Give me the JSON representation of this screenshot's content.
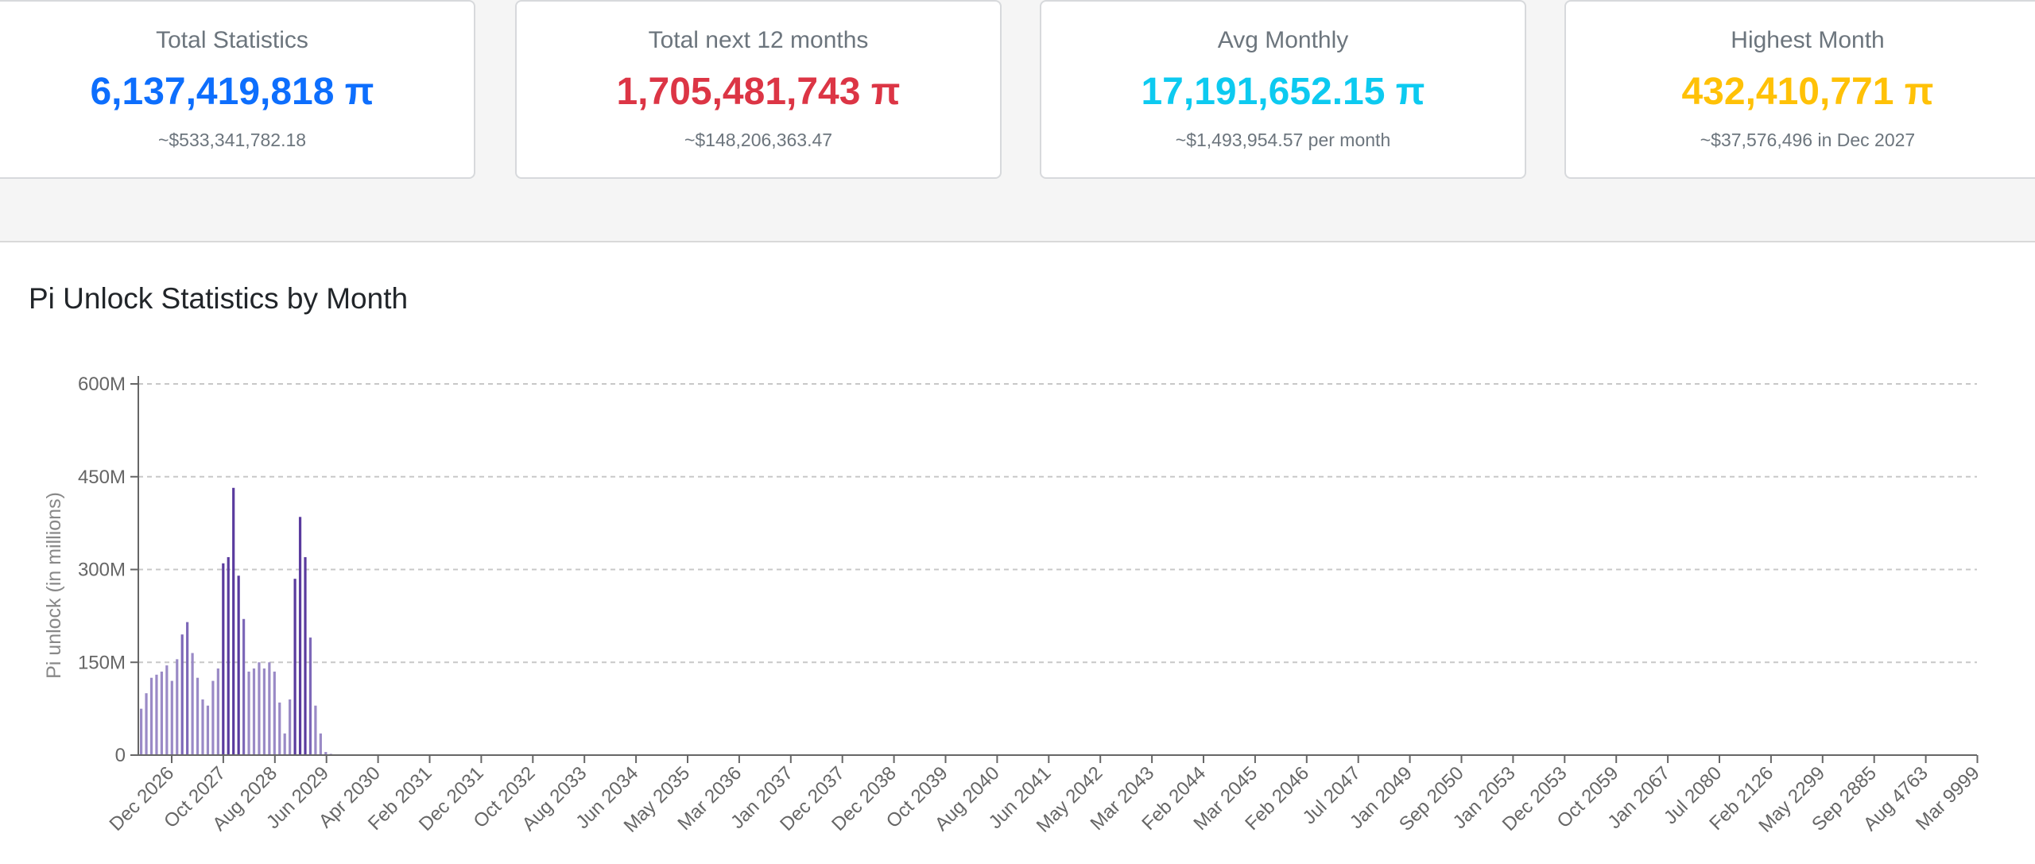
{
  "cards": [
    {
      "title": "Total Statistics",
      "value": "6,137,419,818 π",
      "sub": "~$533,341,782.18",
      "color": "#0d6efd"
    },
    {
      "title": "Total next 12 months",
      "value": "1,705,481,743 π",
      "sub": "~$148,206,363.47",
      "color": "#dc3545"
    },
    {
      "title": "Avg Monthly",
      "value": "17,191,652.15 π",
      "sub": "~$1,493,954.57 per month",
      "color": "#0dcaf0"
    },
    {
      "title": "Highest Month",
      "value": "432,410,771 π",
      "sub": "~$37,576,496 in Dec 2027",
      "color": "#ffc107"
    }
  ],
  "chart_section": {
    "title": "Pi Unlock Statistics by Month"
  },
  "chart_data": {
    "type": "bar",
    "ylabel": "Pi unlock (in millions)",
    "ylim": [
      0,
      600
    ],
    "y_ticks": [
      0,
      150,
      300,
      450,
      600
    ],
    "y_tick_labels": [
      "0",
      "150M",
      "300M",
      "450M",
      "600M"
    ],
    "grid": true,
    "x_tick_labels": [
      "Dec 2026",
      "Oct 2027",
      "Aug 2028",
      "Jun 2029",
      "Apr 2030",
      "Feb 2031",
      "Dec 2031",
      "Oct 2032",
      "Aug 2033",
      "Jun 2034",
      "May 2035",
      "Mar 2036",
      "Jan 2037",
      "Dec 2037",
      "Dec 2038",
      "Oct 2039",
      "Aug 2040",
      "Jun 2041",
      "May 2042",
      "Mar 2043",
      "Feb 2044",
      "Mar 2045",
      "Feb 2046",
      "Jul 2047",
      "Jan 2049",
      "Sep 2050",
      "Jan 2053",
      "Dec 2053",
      "Oct 2059",
      "Jan 2067",
      "Jul 2080",
      "Feb 2126",
      "May 2299",
      "Sep 2885",
      "Aug 4763",
      "Mar 9999"
    ],
    "bar_unit": "M",
    "values": [
      75,
      100,
      125,
      130,
      135,
      145,
      120,
      155,
      195,
      215,
      165,
      125,
      90,
      80,
      120,
      140,
      310,
      320,
      432,
      290,
      220,
      135,
      140,
      150,
      140,
      150,
      135,
      85,
      35,
      90,
      285,
      385,
      320,
      190,
      80,
      35,
      5,
      2,
      1,
      1,
      0.5
    ],
    "bar_colors": {
      "light": "#9a8ac6",
      "medium": "#7d68b8",
      "dark": "#5a3b9e"
    }
  }
}
